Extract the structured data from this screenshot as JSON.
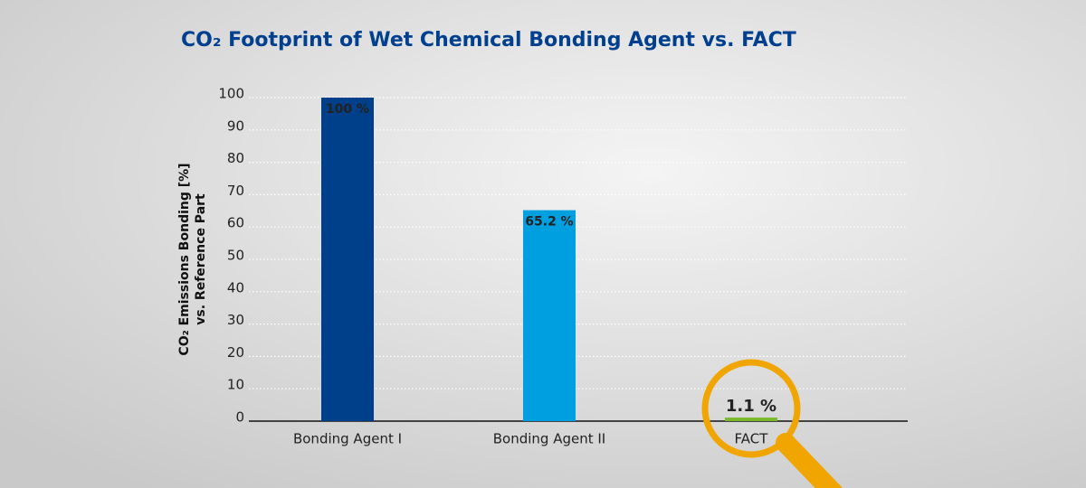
{
  "chart_data": {
    "type": "bar",
    "title": "CO₂ Footprint of Wet Chemical Bonding Agent vs. FACT",
    "y_label": [
      "CO₂ Emissions Bonding [%]",
      "vs. Reference Part"
    ],
    "categories": [
      "Bonding Agent I",
      "Bonding Agent II",
      "FACT"
    ],
    "values": [
      100,
      65.2,
      1.1
    ],
    "value_labels": [
      "100 %",
      "65.2 %",
      "1.1 %"
    ],
    "colors": [
      "#003f8a",
      "#00a0e0",
      "#7ab929"
    ],
    "ylim": [
      0,
      100
    ],
    "yticks": [
      0,
      10,
      20,
      30,
      40,
      50,
      60,
      70,
      80,
      90,
      100
    ],
    "grid": true
  }
}
